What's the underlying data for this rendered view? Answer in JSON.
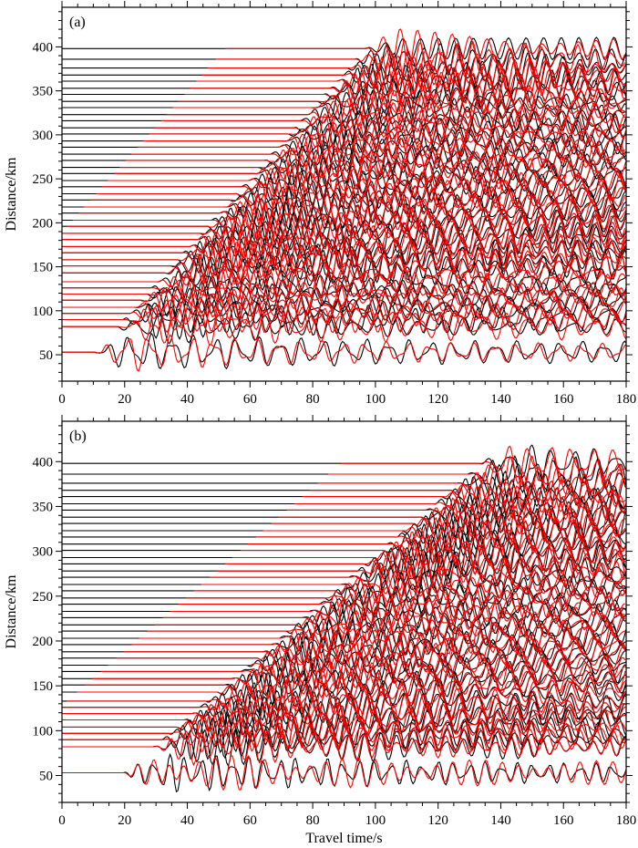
{
  "chart_data": [
    {
      "type": "line",
      "panel_label": "(a)",
      "xlabel": "",
      "ylabel": "Distance/km",
      "xlim": [
        0,
        180
      ],
      "ylim": [
        20,
        445
      ],
      "xticks": [
        0,
        20,
        40,
        60,
        80,
        100,
        120,
        140,
        160,
        180
      ],
      "yticks": [
        50,
        100,
        150,
        200,
        250,
        300,
        350,
        400
      ],
      "grid": false,
      "trace_offsets_km": [
        53,
        82,
        90,
        97,
        104,
        112,
        119,
        126,
        133,
        143,
        151,
        158,
        166,
        173,
        181,
        188,
        196,
        203,
        211,
        218,
        226,
        233,
        241,
        248,
        256,
        263,
        271,
        278,
        286,
        293,
        301,
        308,
        316,
        323,
        331,
        338,
        346,
        353,
        361,
        368,
        376,
        386,
        398
      ],
      "series": [
        {
          "color": "#000000",
          "onset_slope_s_per_km": 0.25,
          "onset_intercept_s": -3,
          "end_time_s": 180,
          "amplitude_km": 22
        },
        {
          "color": "#ff0000",
          "onset_slope_s_per_km": 0.25,
          "onset_intercept_s": -3,
          "end_time_s": 180,
          "amplitude_km": 22
        }
      ]
    },
    {
      "type": "line",
      "panel_label": "(b)",
      "xlabel": "Travel time/s",
      "ylabel": "Distance/km",
      "xlim": [
        0,
        180
      ],
      "ylim": [
        20,
        445
      ],
      "xticks": [
        0,
        20,
        40,
        60,
        80,
        100,
        120,
        140,
        160,
        180
      ],
      "yticks": [
        50,
        100,
        150,
        200,
        250,
        300,
        350,
        400
      ],
      "grid": false,
      "trace_offsets_km": [
        53,
        82,
        90,
        97,
        104,
        112,
        119,
        126,
        133,
        143,
        151,
        158,
        166,
        173,
        181,
        188,
        196,
        203,
        211,
        218,
        226,
        233,
        241,
        248,
        256,
        263,
        271,
        278,
        286,
        293,
        301,
        308,
        316,
        323,
        331,
        338,
        346,
        353,
        361,
        368,
        376,
        386,
        398
      ],
      "series": [
        {
          "color": "#000000",
          "onset_slope_s_per_km": 0.33,
          "onset_intercept_s": 2,
          "end_time_s": 180,
          "amplitude_km": 22
        },
        {
          "color": "#ff0000",
          "onset_slope_s_per_km": 0.33,
          "onset_intercept_s": 2,
          "end_time_s": 180,
          "amplitude_km": 22
        }
      ]
    }
  ]
}
